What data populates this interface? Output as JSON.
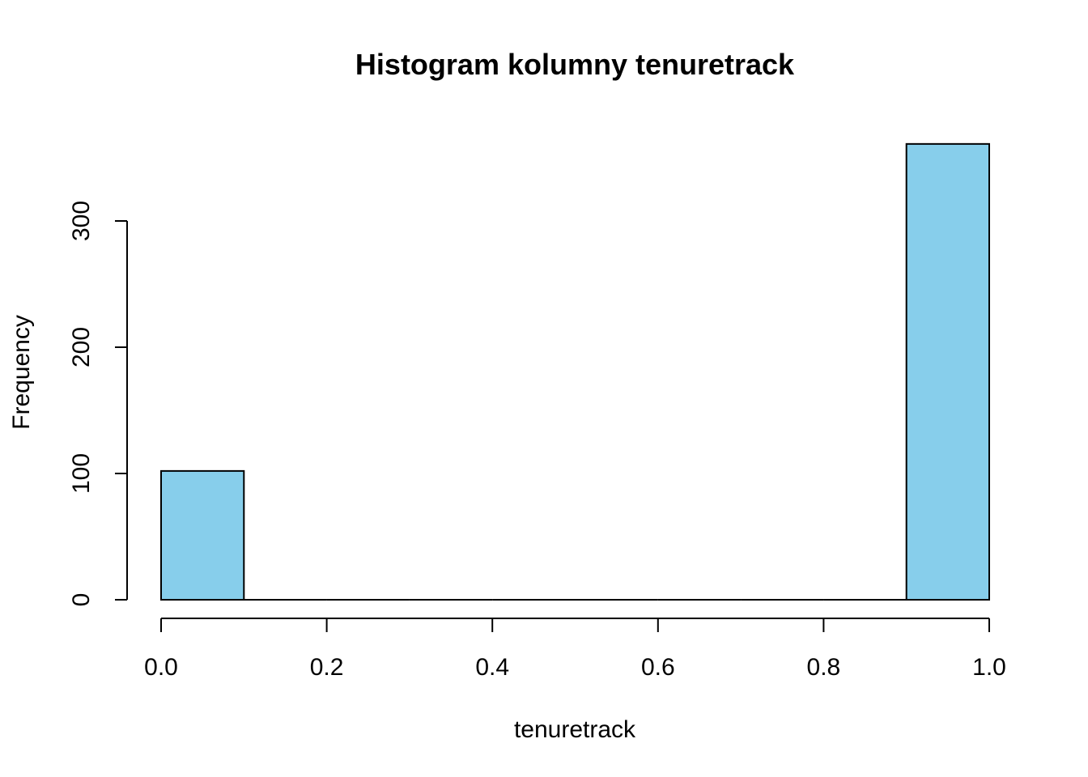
{
  "chart_data": {
    "type": "bar",
    "title": "Histogram kolumny tenuretrack",
    "xlabel": "tenuretrack",
    "ylabel": "Frequency",
    "bins": [
      {
        "x0": 0.0,
        "x1": 0.1,
        "count": 102
      },
      {
        "x0": 0.1,
        "x1": 0.2,
        "count": 0
      },
      {
        "x0": 0.2,
        "x1": 0.3,
        "count": 0
      },
      {
        "x0": 0.3,
        "x1": 0.4,
        "count": 0
      },
      {
        "x0": 0.4,
        "x1": 0.5,
        "count": 0
      },
      {
        "x0": 0.5,
        "x1": 0.6,
        "count": 0
      },
      {
        "x0": 0.6,
        "x1": 0.7,
        "count": 0
      },
      {
        "x0": 0.7,
        "x1": 0.8,
        "count": 0
      },
      {
        "x0": 0.8,
        "x1": 0.9,
        "count": 0
      },
      {
        "x0": 0.9,
        "x1": 1.0,
        "count": 361
      }
    ],
    "x_ticks": [
      0.0,
      0.2,
      0.4,
      0.6,
      0.8,
      1.0
    ],
    "x_tick_labels": [
      "0.0",
      "0.2",
      "0.4",
      "0.6",
      "0.8",
      "1.0"
    ],
    "y_ticks": [
      0,
      100,
      200,
      300
    ],
    "y_tick_labels": [
      "0",
      "100",
      "200",
      "300"
    ],
    "xlim": [
      0.0,
      1.0
    ],
    "ylim": [
      0,
      361
    ],
    "grid": false,
    "legend": "none",
    "bar_color": "#87CEEB",
    "border_color": "#000000"
  }
}
